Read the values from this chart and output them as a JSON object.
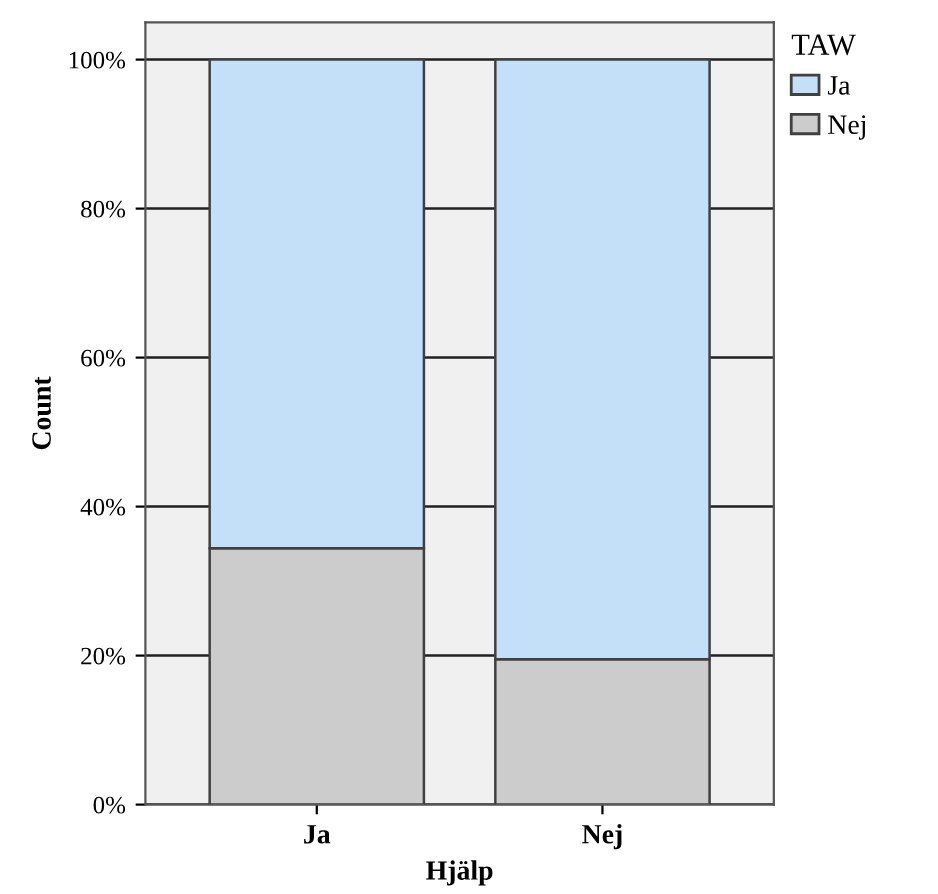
{
  "chart_data": {
    "type": "bar",
    "stacked": true,
    "xlabel": "Hjälp",
    "ylabel": "Count",
    "legend_title": "TAW",
    "legend": "top right",
    "grid": "y",
    "categories": [
      "Ja",
      "Nej"
    ],
    "series": [
      {
        "name": "Nej",
        "color": "#cccccc",
        "values": [
          34.4,
          19.5
        ]
      },
      {
        "name": "Ja",
        "color": "#c4e0f8",
        "values": [
          65.6,
          80.5
        ]
      }
    ],
    "ylim": [
      0,
      105
    ],
    "yticks": [
      {
        "value": 0,
        "label": "0%"
      },
      {
        "value": 20,
        "label": "20%"
      },
      {
        "value": 40,
        "label": "40%"
      },
      {
        "value": 60,
        "label": "60%"
      },
      {
        "value": 80,
        "label": "80%"
      },
      {
        "value": 100,
        "label": "100%"
      }
    ]
  }
}
